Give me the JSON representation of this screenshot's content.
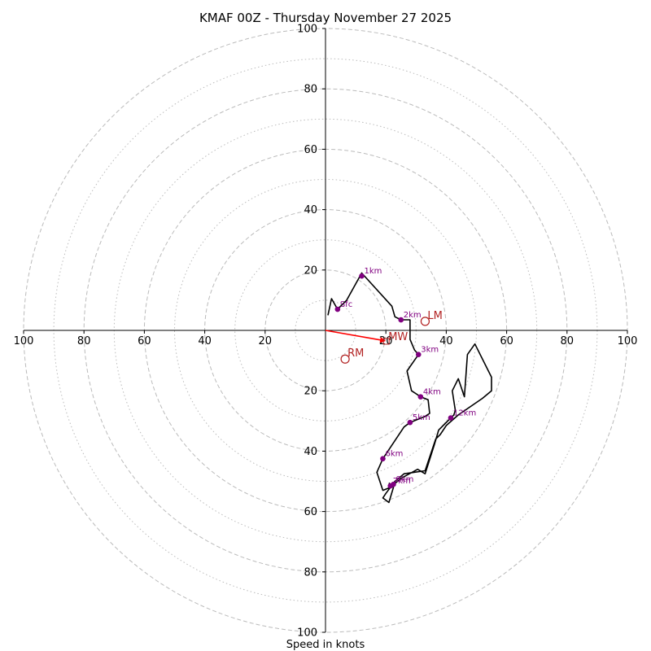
{
  "chart_data": {
    "type": "hodograph",
    "title": "KMAF 00Z - Thursday November 27 2025",
    "xlabel": "Speed in knots",
    "units": "knots",
    "axis_range": [
      -100,
      100
    ],
    "ring_major": [
      20,
      40,
      60,
      80,
      100
    ],
    "ring_minor": [
      10,
      30,
      50,
      70,
      90
    ],
    "tick_labels_x": [
      {
        "value": -100,
        "label": "100"
      },
      {
        "value": -80,
        "label": "80"
      },
      {
        "value": -60,
        "label": "60"
      },
      {
        "value": -40,
        "label": "40"
      },
      {
        "value": -20,
        "label": "20"
      },
      {
        "value": 20,
        "label": "20"
      },
      {
        "value": 40,
        "label": "40"
      },
      {
        "value": 60,
        "label": "60"
      },
      {
        "value": 80,
        "label": "80"
      },
      {
        "value": 100,
        "label": "100"
      }
    ],
    "tick_labels_y": [
      {
        "value": 100,
        "label": "100"
      },
      {
        "value": 80,
        "label": "80"
      },
      {
        "value": 60,
        "label": "60"
      },
      {
        "value": 40,
        "label": "40"
      },
      {
        "value": 20,
        "label": "20"
      },
      {
        "value": -20,
        "label": "20"
      },
      {
        "value": -40,
        "label": "40"
      },
      {
        "value": -60,
        "label": "60"
      },
      {
        "value": -80,
        "label": "80"
      },
      {
        "value": -100,
        "label": "100"
      }
    ],
    "trace": [
      [
        0.8,
        5.0
      ],
      [
        2.0,
        10.5
      ],
      [
        4.0,
        7.0
      ],
      [
        7.0,
        10.0
      ],
      [
        12.0,
        19.0
      ],
      [
        22.0,
        8.0
      ],
      [
        23.0,
        4.5
      ],
      [
        25.0,
        3.5
      ],
      [
        28.0,
        3.5
      ],
      [
        28.0,
        -3.0
      ],
      [
        29.5,
        -6.5
      ],
      [
        30.8,
        -8.0
      ],
      [
        28.0,
        -12.0
      ],
      [
        27.0,
        -13.5
      ],
      [
        28.5,
        -20.0
      ],
      [
        31.5,
        -22.0
      ],
      [
        34.0,
        -23.0
      ],
      [
        34.5,
        -27.5
      ],
      [
        33.0,
        -28.5
      ],
      [
        28.0,
        -30.5
      ],
      [
        26.0,
        -32.0
      ],
      [
        19.0,
        -42.5
      ],
      [
        17.0,
        -47.0
      ],
      [
        19.0,
        -53.0
      ],
      [
        21.5,
        -52.0
      ],
      [
        25.0,
        -49.0
      ],
      [
        30.5,
        -46.0
      ],
      [
        33.0,
        -47.5
      ],
      [
        36.0,
        -38.0
      ],
      [
        37.5,
        -33.0
      ],
      [
        39.5,
        -31.0
      ],
      [
        41.5,
        -29.0
      ],
      [
        42.5,
        -28.0
      ],
      [
        43.0,
        -26.5
      ],
      [
        42.0,
        -20.0
      ],
      [
        44.0,
        -16.0
      ],
      [
        46.0,
        -22.0
      ],
      [
        47.0,
        -8.0
      ],
      [
        49.5,
        -4.5
      ],
      [
        55.0,
        -15.5
      ],
      [
        55.0,
        -20.0
      ],
      [
        52.0,
        -22.5
      ],
      [
        44.0,
        -28.0
      ],
      [
        40.0,
        -31.5
      ],
      [
        38.0,
        -34.5
      ],
      [
        36.5,
        -36.0
      ],
      [
        33.0,
        -46.5
      ],
      [
        26.0,
        -47.5
      ],
      [
        23.0,
        -50.0
      ],
      [
        20.0,
        -54.0
      ],
      [
        19.0,
        -55.5
      ],
      [
        21.0,
        -57.0
      ],
      [
        22.5,
        -52.0
      ],
      [
        21.0,
        -50.5
      ]
    ],
    "height_points": [
      {
        "label": "Sfc",
        "u": 4.0,
        "v": 7.0
      },
      {
        "label": "1km",
        "u": 12.0,
        "v": 18.0
      },
      {
        "label": "2km",
        "u": 25.0,
        "v": 3.5
      },
      {
        "label": "3km",
        "u": 30.8,
        "v": -8.0
      },
      {
        "label": "4km",
        "u": 31.5,
        "v": -22.0
      },
      {
        "label": "5km",
        "u": 28.0,
        "v": -30.5
      },
      {
        "label": "6km",
        "u": 19.0,
        "v": -42.5
      },
      {
        "label": "7km",
        "u": 21.5,
        "v": -51.5
      },
      {
        "label": "8km",
        "u": 22.5,
        "v": -51.0
      },
      {
        "label": "12km",
        "u": 41.5,
        "v": -29.0
      }
    ],
    "storm_motion": [
      {
        "label": "LM",
        "u": 33.0,
        "v": 3.0
      },
      {
        "label": "RM",
        "u": 6.5,
        "v": -9.5
      }
    ],
    "mean_wind": {
      "label": "MW",
      "u": 20.0,
      "v": -3.5
    },
    "colors": {
      "ring": "#bbbbbb",
      "trace": "#000000",
      "points": "#800080",
      "motion": "#b22222",
      "vector": "#ff0000"
    }
  }
}
